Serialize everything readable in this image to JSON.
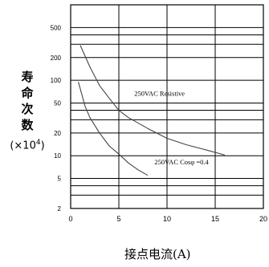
{
  "chart_data": {
    "type": "line",
    "xlabel": "接点电流(A)",
    "ylabel_chars": [
      "寿",
      "命",
      "次",
      "数"
    ],
    "ylabel_unit_prefix": "(×10",
    "ylabel_unit_exp": "4",
    "ylabel_unit_suffix": ")",
    "xlim": [
      0,
      20
    ],
    "ylim": [
      2,
      1000
    ],
    "yscale": "log",
    "x_ticks": [
      0,
      5,
      10,
      15,
      20
    ],
    "y_ticks": [
      2,
      5,
      10,
      20,
      50,
      100,
      200,
      500
    ],
    "grid": true,
    "series": [
      {
        "name": "250VAC Resistive",
        "x": [
          1,
          2,
          3,
          4,
          5,
          6,
          8,
          10,
          12,
          14,
          16
        ],
        "y": [
          290,
          150,
          85,
          58,
          40,
          32,
          23,
          17,
          14,
          12,
          10.2
        ]
      },
      {
        "name": "250VAC Cosφ =0.4",
        "x": [
          0.8,
          1.5,
          2,
          3,
          4,
          5,
          6,
          7,
          8
        ],
        "y": [
          95,
          45,
          32,
          20,
          13.5,
          10.5,
          8,
          6.5,
          5.5
        ]
      }
    ]
  }
}
